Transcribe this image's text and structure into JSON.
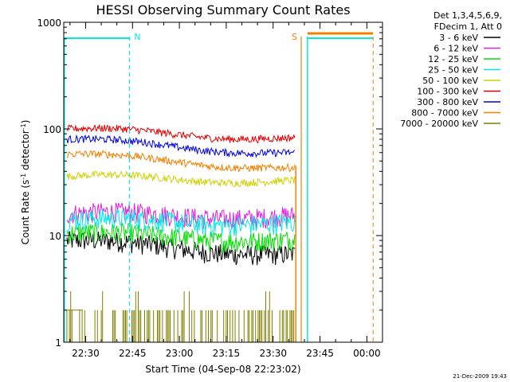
{
  "chart_data": {
    "type": "line",
    "title": "HESSI Observing Summary Count Rates",
    "xlabel": "Start Time (04-Sep-08 22:23:02)",
    "ylabel_parts": [
      "Count Rate (s",
      "-1",
      " detector",
      "-1",
      ")"
    ],
    "y_scale": "log",
    "ylim": [
      1,
      1000
    ],
    "y_ticks": [
      {
        "value": 1,
        "label": "1"
      },
      {
        "value": 10,
        "label": "10"
      },
      {
        "value": 100,
        "label": "100"
      },
      {
        "value": 1000,
        "label": "1000"
      }
    ],
    "x_range": [
      "22:23",
      "00:05"
    ],
    "x_ticks": [
      {
        "label": "22:30",
        "value": "22:30"
      },
      {
        "label": "22:45",
        "value": "22:45"
      },
      {
        "label": "23:00",
        "value": "23:00"
      },
      {
        "label": "23:15",
        "value": "23:15"
      },
      {
        "label": "23:30",
        "value": "23:30"
      },
      {
        "label": "23:45",
        "value": "23:45"
      },
      {
        "label": "00:00",
        "value": "00:00"
      }
    ],
    "legend_header": [
      "Det 1,3,4,5,6,9,",
      "FDecim 1, Att 0"
    ],
    "legend_position": "right",
    "series": [
      {
        "name": "3 - 6 keV",
        "color": "#000000",
        "level_start": 9,
        "level_end": 6.5
      },
      {
        "name": "6 - 12 keV",
        "color": "#e020e0",
        "level_start": 16,
        "level_end": 15
      },
      {
        "name": "12 - 25 keV",
        "color": "#00e000",
        "level_start": 10.5,
        "level_end": 9
      },
      {
        "name": "25 - 50 keV",
        "color": "#00e8e8",
        "level_start": 14,
        "level_end": 13
      },
      {
        "name": "50 - 100 keV",
        "color": "#d0d000",
        "level_start": 36,
        "level_end": 32
      },
      {
        "name": "100 - 300 keV",
        "color": "#e00000",
        "level_start": 100,
        "level_end": 80
      },
      {
        "name": "300 - 800 keV",
        "color": "#0000e0",
        "level_start": 80,
        "level_end": 58
      },
      {
        "name": "800 - 7000 keV",
        "color": "#f08000",
        "level_start": 58,
        "level_end": 42
      },
      {
        "name": "7000 - 20000 keV",
        "color": "#808000",
        "level_start": 2,
        "level_end": 2
      }
    ],
    "markers": [
      {
        "label": "N",
        "color": "#00e8e8",
        "time": "22:44",
        "style": "dashed"
      },
      {
        "label": "S",
        "color": "#f08000",
        "time": "23:39",
        "style": "solid"
      }
    ],
    "footer_date": "21-Dec-2009 19:43"
  }
}
